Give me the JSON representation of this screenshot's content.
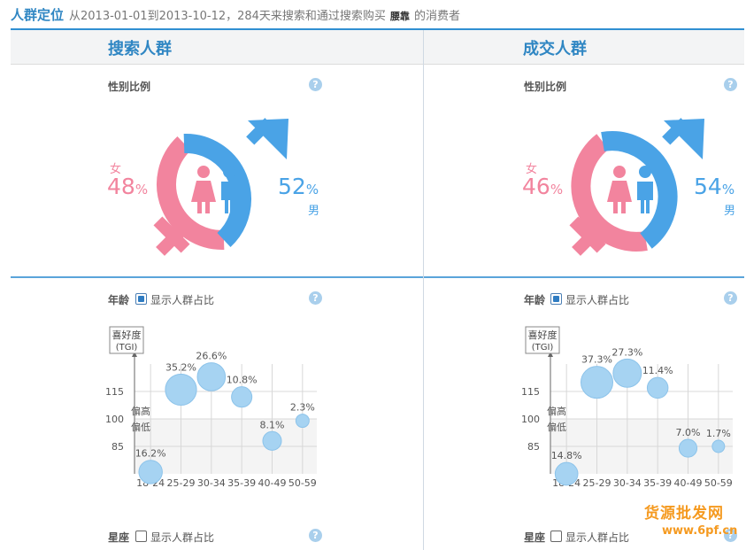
{
  "header": {
    "title": "人群定位",
    "desc": "从2013-01-01到2013-10-12，284天来搜索和通过搜索购买",
    "keyword": "腰靠",
    "desc2": "的消费者"
  },
  "colors": {
    "accent": "#2f86c3",
    "female": "#f2849e",
    "male": "#4aa3e6",
    "bubble": "#a6d3f2"
  },
  "panels": [
    {
      "heading": "搜索人群",
      "gender": {
        "title": "性别比例",
        "female_label": "女",
        "female_pct": "48",
        "male_pct": "52",
        "male_label": "男",
        "pct_sign": "%"
      },
      "age": {
        "title": "年龄",
        "checkbox_label": "显示人群占比"
      },
      "constellation": {
        "title": "星座",
        "checkbox_label": "显示人群占比"
      }
    },
    {
      "heading": "成交人群",
      "gender": {
        "title": "性别比例",
        "female_label": "女",
        "female_pct": "46",
        "male_pct": "54",
        "male_label": "男",
        "pct_sign": "%"
      },
      "age": {
        "title": "年龄",
        "checkbox_label": "显示人群占比"
      },
      "constellation": {
        "title": "星座",
        "checkbox_label": "显示人群占比"
      }
    }
  ],
  "chart_data": [
    {
      "type": "scatter",
      "title": "",
      "ylabel": "喜好度(TGI)",
      "categories": [
        "18-24",
        "25-29",
        "30-34",
        "35-39",
        "40-49",
        "50-59"
      ],
      "yticks": [
        85,
        100,
        115
      ],
      "ylim": [
        70,
        130
      ],
      "band_labels": {
        "high": "偏高",
        "low": "偏低"
      },
      "points": [
        {
          "category": "18-24",
          "tgi": 71,
          "share": 16.2,
          "label": "16.2%"
        },
        {
          "category": "25-29",
          "tgi": 116,
          "share": 35.2,
          "label": "35.2%"
        },
        {
          "category": "30-34",
          "tgi": 123,
          "share": 26.6,
          "label": "26.6%"
        },
        {
          "category": "35-39",
          "tgi": 112,
          "share": 10.8,
          "label": "10.8%"
        },
        {
          "category": "40-49",
          "tgi": 88,
          "share": 8.1,
          "label": "8.1%"
        },
        {
          "category": "50-59",
          "tgi": 99,
          "share": 2.3,
          "label": "2.3%"
        }
      ]
    },
    {
      "type": "scatter",
      "title": "",
      "ylabel": "喜好度(TGI)",
      "categories": [
        "18-24",
        "25-29",
        "30-34",
        "35-39",
        "40-49",
        "50-59"
      ],
      "yticks": [
        85,
        100,
        115
      ],
      "ylim": [
        70,
        130
      ],
      "band_labels": {
        "high": "偏高",
        "low": "偏低"
      },
      "points": [
        {
          "category": "18-24",
          "tgi": 70,
          "share": 14.8,
          "label": "14.8%"
        },
        {
          "category": "25-29",
          "tgi": 120,
          "share": 37.3,
          "label": "37.3%"
        },
        {
          "category": "30-34",
          "tgi": 125,
          "share": 27.3,
          "label": "27.3%"
        },
        {
          "category": "35-39",
          "tgi": 117,
          "share": 11.4,
          "label": "11.4%"
        },
        {
          "category": "40-49",
          "tgi": 84,
          "share": 7.0,
          "label": "7.0%"
        },
        {
          "category": "50-59",
          "tgi": 85,
          "share": 1.7,
          "label": "1.7%"
        }
      ]
    }
  ],
  "watermark": {
    "line1": "货源批发网",
    "line2": "www.6pf.cn"
  }
}
